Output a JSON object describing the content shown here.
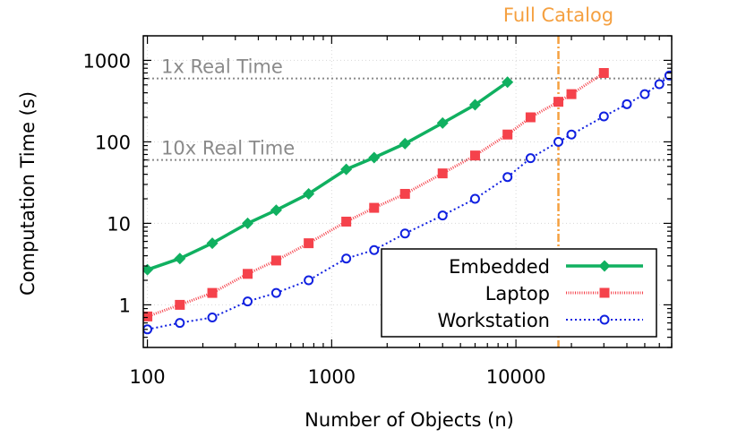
{
  "chart_data": {
    "type": "line",
    "xlabel": "Number of Objects (n)",
    "ylabel": "Computation Time (s)",
    "xscale": "log",
    "yscale": "log",
    "xlim": [
      95,
      70000
    ],
    "ylim": [
      0.3,
      2000
    ],
    "grid": true,
    "legend": "bottom-right",
    "x_ticks": [
      100,
      1000,
      10000
    ],
    "x_tick_labels": [
      "100",
      "1000",
      "10000"
    ],
    "y_ticks": [
      1,
      10,
      100,
      1000
    ],
    "y_tick_labels": [
      "1",
      "10",
      "100",
      "1000"
    ],
    "hlines": [
      {
        "label": "1x Real Time",
        "y": 600,
        "color": "#8a8a8a"
      },
      {
        "label": "10x Real Time",
        "y": 60,
        "color": "#8a8a8a"
      }
    ],
    "vlines": [
      {
        "label": "Full Catalog",
        "x": 17000,
        "color": "#f5a040"
      }
    ],
    "series": [
      {
        "name": "Embedded",
        "color": "#10b060",
        "marker": "diamond",
        "line": "solid",
        "x": [
          100,
          150,
          225,
          350,
          500,
          750,
          1200,
          1700,
          2500,
          4000,
          6000,
          9000
        ],
        "y": [
          2.7,
          3.7,
          5.7,
          10,
          14.5,
          23,
          46,
          64,
          95,
          170,
          285,
          540
        ]
      },
      {
        "name": "Laptop",
        "color": "#f5424b",
        "marker": "square",
        "line": "dotted",
        "x": [
          100,
          150,
          225,
          350,
          500,
          750,
          1200,
          1700,
          2500,
          4000,
          6000,
          9000,
          12000,
          17000,
          20000,
          30000
        ],
        "y": [
          0.72,
          1.0,
          1.4,
          2.4,
          3.5,
          5.7,
          10.5,
          15.5,
          23,
          41,
          68,
          123,
          200,
          310,
          385,
          700
        ]
      },
      {
        "name": "Workstation",
        "color": "#1020e0",
        "marker": "circle",
        "line": "dotted",
        "x": [
          100,
          150,
          225,
          350,
          500,
          750,
          1200,
          1700,
          2500,
          4000,
          6000,
          9000,
          12000,
          17000,
          20000,
          30000,
          40000,
          50000,
          60000,
          68000
        ],
        "y": [
          0.5,
          0.6,
          0.7,
          1.1,
          1.4,
          2.0,
          3.7,
          4.7,
          7.5,
          12.5,
          20,
          37,
          63,
          100,
          123,
          205,
          290,
          385,
          510,
          650
        ]
      }
    ]
  }
}
